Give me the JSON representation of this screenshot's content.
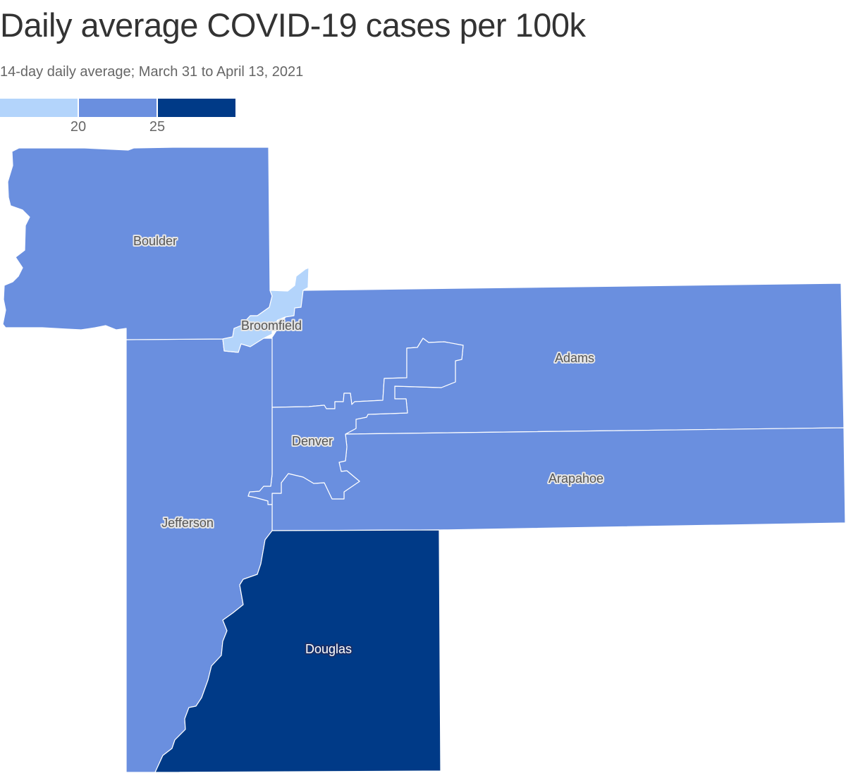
{
  "title": "Daily average COVID-19 cases per 100k",
  "subtitle": "14-day daily average; March 31 to April 13, 2021",
  "legend": {
    "ticks": [
      "20",
      "25"
    ],
    "bins": [
      {
        "range": "below 20",
        "color": "#b3d4fb"
      },
      {
        "range": "20 to 25",
        "color": "#6a8fdf"
      },
      {
        "range": "25 and above",
        "color": "#003a87"
      }
    ]
  },
  "colors": {
    "bin_low": "#b3d4fb",
    "bin_mid": "#6a8fdf",
    "bin_high": "#003a87",
    "border": "#ffffff"
  },
  "counties": [
    {
      "name": "Boulder",
      "bin": "20 to 25"
    },
    {
      "name": "Broomfield",
      "bin": "below 20"
    },
    {
      "name": "Adams",
      "bin": "20 to 25"
    },
    {
      "name": "Denver",
      "bin": "20 to 25"
    },
    {
      "name": "Arapahoe",
      "bin": "20 to 25"
    },
    {
      "name": "Jefferson",
      "bin": "20 to 25"
    },
    {
      "name": "Douglas",
      "bin": "25 and above"
    }
  ]
}
